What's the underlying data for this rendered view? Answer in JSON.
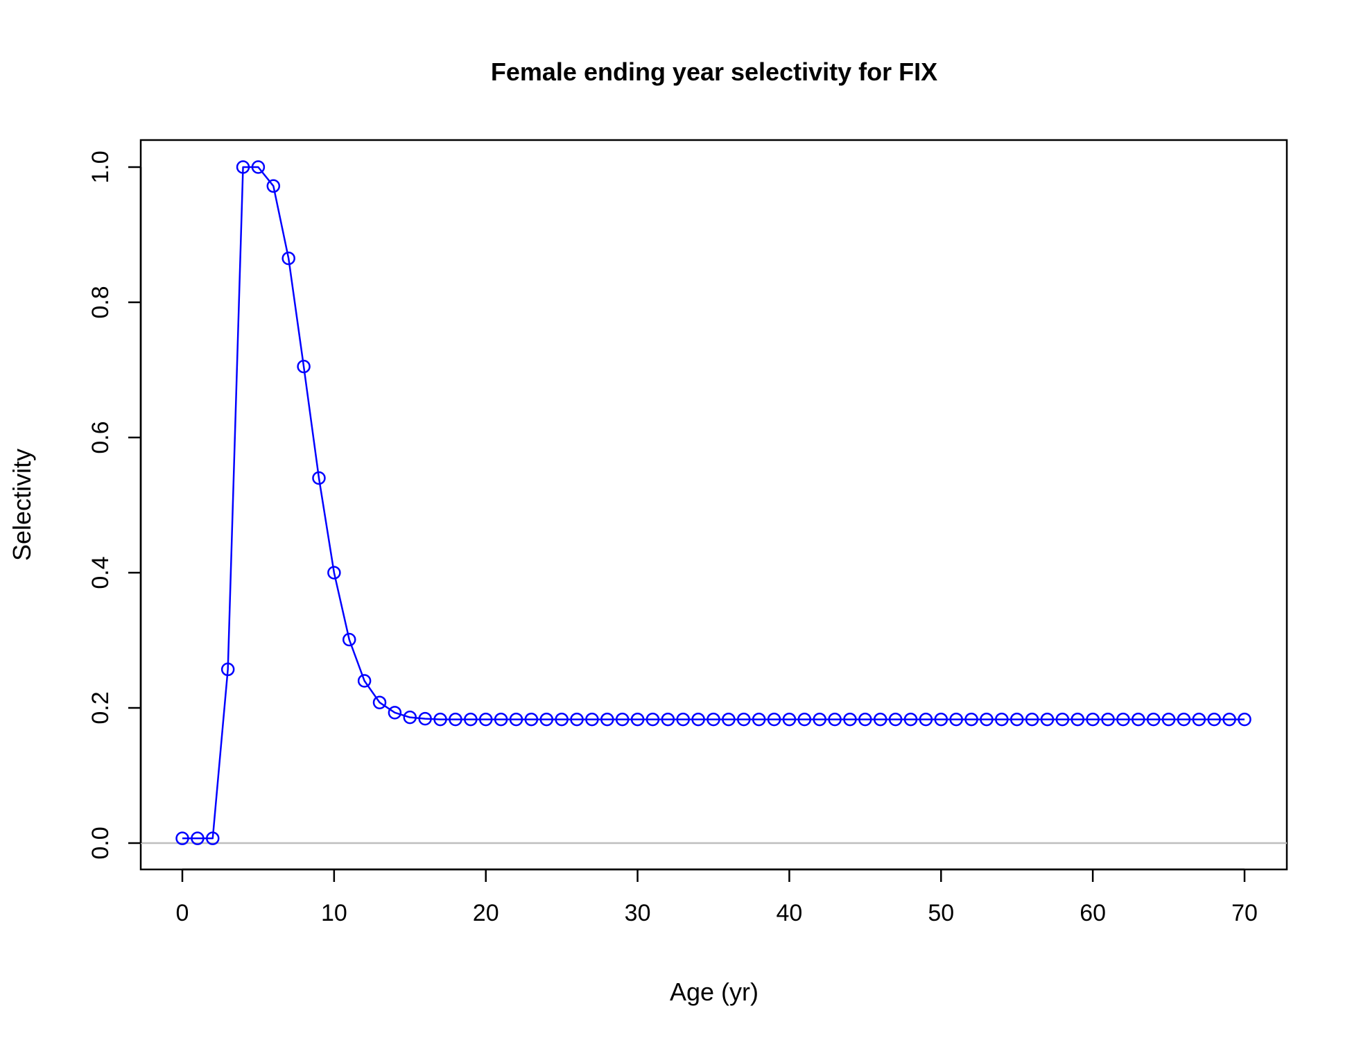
{
  "chart_data": {
    "type": "line",
    "title": "Female ending year selectivity for FIX",
    "xlabel": "Age (yr)",
    "ylabel": "Selectivity",
    "xlim": [
      0,
      70
    ],
    "ylim": [
      0,
      1.0
    ],
    "x_ticks": [
      "0",
      "10",
      "20",
      "30",
      "40",
      "50",
      "60",
      "70"
    ],
    "y_ticks": [
      "0.0",
      "0.2",
      "0.4",
      "0.6",
      "0.8",
      "1.0"
    ],
    "reference_line_y": 0,
    "grid": false,
    "legend": "none",
    "series": [
      {
        "color": "#0000ff",
        "marker": "open-circle",
        "x": [
          0,
          1,
          2,
          3,
          4,
          5,
          6,
          7,
          8,
          9,
          10,
          11,
          12,
          13,
          14,
          15,
          16,
          17,
          18,
          19,
          20,
          21,
          22,
          23,
          24,
          25,
          26,
          27,
          28,
          29,
          30,
          31,
          32,
          33,
          34,
          35,
          36,
          37,
          38,
          39,
          40,
          41,
          42,
          43,
          44,
          45,
          46,
          47,
          48,
          49,
          50,
          51,
          52,
          53,
          54,
          55,
          56,
          57,
          58,
          59,
          60,
          61,
          62,
          63,
          64,
          65,
          66,
          67,
          68,
          69,
          70
        ],
        "values": [
          0.007,
          0.007,
          0.007,
          0.257,
          1.0,
          1.0,
          0.972,
          0.865,
          0.705,
          0.54,
          0.4,
          0.301,
          0.24,
          0.208,
          0.193,
          0.186,
          0.184,
          0.183,
          0.183,
          0.183,
          0.183,
          0.183,
          0.183,
          0.183,
          0.183,
          0.183,
          0.183,
          0.183,
          0.183,
          0.183,
          0.183,
          0.183,
          0.183,
          0.183,
          0.183,
          0.183,
          0.183,
          0.183,
          0.183,
          0.183,
          0.183,
          0.183,
          0.183,
          0.183,
          0.183,
          0.183,
          0.183,
          0.183,
          0.183,
          0.183,
          0.183,
          0.183,
          0.183,
          0.183,
          0.183,
          0.183,
          0.183,
          0.183,
          0.183,
          0.183,
          0.183,
          0.183,
          0.183,
          0.183,
          0.183,
          0.183,
          0.183,
          0.183,
          0.183,
          0.183,
          0.183
        ]
      }
    ]
  },
  "colors": {
    "series": "#0000ff",
    "reference_line": "#bebebe",
    "frame": "#000000"
  }
}
